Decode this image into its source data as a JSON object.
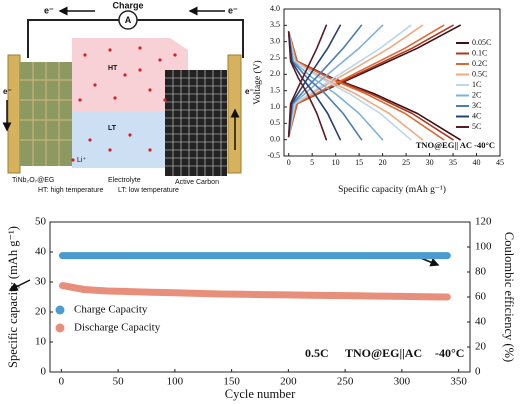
{
  "diagram": {
    "charge_label": "Charge",
    "ammeter": "A",
    "electron_labels": [
      "e⁻",
      "e⁻",
      "e⁻",
      "e⁻"
    ],
    "regions": [
      "HT",
      "LT"
    ],
    "components": [
      "TiNb₂O₇@EG",
      "Electrolyte",
      "Active Carbon"
    ],
    "ion": "Li⁺",
    "legend": [
      "HT: high temperature",
      "LT: low temperature"
    ]
  },
  "chart_data": [
    {
      "type": "line",
      "xlabel": "Specific capacity (mAh g⁻¹)",
      "ylabel": "Voltage (V)",
      "annotation": "TNO@EG|| AC  -40°C",
      "legend": "upper right",
      "xlim": [
        -1,
        45
      ],
      "xticks": [
        0,
        5,
        10,
        15,
        20,
        25,
        30,
        35,
        40,
        45
      ],
      "ylim": [
        -0.5,
        4.0
      ],
      "yticks": [
        -0.5,
        {
          "value": 0,
          "label": "0.0"
        },
        0.5,
        {
          "value": 1,
          "label": "1.0"
        },
        1.5,
        {
          "value": 2,
          "label": "2.0"
        },
        2.5,
        {
          "value": 3,
          "label": "3.0"
        },
        3.5,
        {
          "value": 4,
          "label": "4.0"
        }
      ],
      "series": [
        {
          "name": "0.05C",
          "color": "#3b1214",
          "x": [
            0,
            1.8,
            9.1,
            18.3,
            27.4,
            36.5,
            null,
            0,
            1.8,
            9.1,
            18.3,
            27.4,
            36.5
          ],
          "values": [
            0.1,
            1.1,
            1.6,
            2.2,
            2.8,
            3.5,
            null,
            3.3,
            2.4,
            1.9,
            1.4,
            0.8,
            0.0
          ]
        },
        {
          "name": "0.1C",
          "color": "#b3361c",
          "x": [
            0,
            1.8,
            8.8,
            17.5,
            26.3,
            35,
            null,
            0,
            1.8,
            8.8,
            17.5,
            26.3,
            35
          ],
          "values": [
            0.1,
            1.1,
            1.6,
            2.2,
            2.8,
            3.5,
            null,
            3.3,
            2.4,
            1.9,
            1.4,
            0.8,
            0.0
          ]
        },
        {
          "name": "0.2C",
          "color": "#dd6a33",
          "x": [
            0,
            1.7,
            8.3,
            16.5,
            24.8,
            33,
            null,
            0,
            1.7,
            8.3,
            16.5,
            24.8,
            33
          ],
          "values": [
            0.1,
            1.1,
            1.6,
            2.2,
            2.8,
            3.5,
            null,
            3.3,
            2.4,
            1.9,
            1.4,
            0.8,
            0.0
          ]
        },
        {
          "name": "0.5C",
          "color": "#f2aa82",
          "x": [
            0,
            1.4,
            7.1,
            14.3,
            21.4,
            28.5,
            null,
            0,
            1.4,
            7.1,
            14.3,
            21.4,
            28.5
          ],
          "values": [
            0.1,
            1.1,
            1.6,
            2.2,
            2.8,
            3.5,
            null,
            3.3,
            2.4,
            1.9,
            1.4,
            0.8,
            0.0
          ]
        },
        {
          "name": "1C",
          "color": "#bcd7ea",
          "x": [
            0,
            1.3,
            6.5,
            13,
            19.5,
            26,
            null,
            0,
            1.3,
            6.5,
            13,
            19.5,
            26
          ],
          "values": [
            0.1,
            1.1,
            1.6,
            2.2,
            2.8,
            3.5,
            null,
            3.3,
            2.4,
            1.9,
            1.4,
            0.8,
            0.0
          ]
        },
        {
          "name": "2C",
          "color": "#7fb1d9",
          "x": [
            0,
            1,
            5,
            10,
            15,
            20,
            null,
            0,
            1,
            5,
            10,
            15,
            20
          ],
          "values": [
            0.1,
            1.1,
            1.6,
            2.2,
            2.8,
            3.5,
            null,
            3.3,
            2.4,
            1.9,
            1.4,
            0.8,
            0.0
          ]
        },
        {
          "name": "3C",
          "color": "#4b7db4",
          "x": [
            0,
            0.8,
            3.9,
            7.8,
            11.6,
            15.5,
            null,
            0,
            0.8,
            3.9,
            7.8,
            11.6,
            15.5
          ],
          "values": [
            0.1,
            1.1,
            1.6,
            2.2,
            2.8,
            3.5,
            null,
            3.3,
            2.4,
            1.9,
            1.4,
            0.8,
            0.0
          ]
        },
        {
          "name": "4C",
          "color": "#27426e",
          "x": [
            0,
            0.6,
            2.8,
            5.5,
            8.3,
            11,
            null,
            0,
            0.6,
            2.8,
            5.5,
            8.3,
            11
          ],
          "values": [
            0.1,
            1.1,
            1.6,
            2.2,
            2.8,
            3.5,
            null,
            3.3,
            2.4,
            1.9,
            1.4,
            0.8,
            0.0
          ]
        },
        {
          "name": "5C",
          "color": "#5a1a24",
          "x": [
            0,
            0.4,
            2,
            4,
            6,
            8,
            null,
            0,
            0.4,
            2,
            4,
            6,
            8
          ],
          "values": [
            0.1,
            1.1,
            1.6,
            2.2,
            2.8,
            3.5,
            null,
            3.3,
            2.4,
            1.9,
            1.4,
            0.8,
            0.0
          ]
        }
      ]
    },
    {
      "type": "line",
      "xlabel": "Cycle number",
      "ylabel": "Specific capacity (mAh g⁻¹)",
      "y2label": "Coulombic efficiency (%)",
      "annotations": [
        "0.5C",
        "TNO@EG||AC",
        "-40°C"
      ],
      "legend": "lower left",
      "xlim": [
        -10,
        360
      ],
      "xticks": [
        0,
        50,
        100,
        150,
        200,
        250,
        300,
        350
      ],
      "ylim": [
        0,
        50
      ],
      "yticks": [
        0,
        10,
        20,
        30,
        40,
        50
      ],
      "y2lim": [
        0,
        120
      ],
      "y2ticks": [
        0,
        20,
        40,
        60,
        80,
        100,
        120
      ],
      "x": [
        1,
        20,
        40,
        60,
        80,
        100,
        120,
        140,
        160,
        180,
        200,
        220,
        240,
        260,
        280,
        300,
        320,
        340
      ],
      "series": [
        {
          "name": "Charge Capacity",
          "color": "#4a9bd0",
          "values": [
            38.8,
            38.8,
            38.8,
            38.8,
            38.8,
            38.8,
            38.8,
            38.8,
            38.8,
            38.8,
            38.8,
            38.8,
            38.8,
            38.8,
            38.8,
            38.8,
            38.8,
            38.8
          ]
        },
        {
          "name": "Discharge Capacity",
          "color": "#e88f7b",
          "values": [
            28.8,
            27.5,
            27.0,
            26.8,
            26.6,
            26.4,
            26.2,
            26.0,
            25.9,
            25.8,
            25.7,
            25.6,
            25.5,
            25.4,
            25.3,
            25.2,
            25.1,
            25.0
          ]
        }
      ]
    }
  ]
}
